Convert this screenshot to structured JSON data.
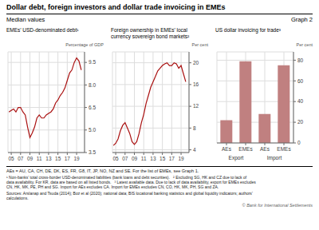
{
  "title": "Dollar debt, foreign investors and dollar trade invoicing in EMEs",
  "subtitle": "Median values",
  "annotations": [
    "Graph 2",
    "AEs = AU, CA, CH, DE, DK, ES, FR, G8, IT, JP, NO, NZ and SE. For the list of EMEs, see Graph 1.",
    "¹ Non-banks’ total cross-border USD-denominated liabilities (bank loans and debt securities).   ² Excluding SG, HK and CZ due to lack of\ndata availability. For KR, data are based on all listed bonds.   ³ Latest available data. Due to lack of data availability, export for EMEs excludes\nCN, HK, MK, PE, PH and SG. Import for AEs excludes CA. Import for EMEs excludes CN, CO, HK, MK, PH, SG and ZA.",
    "Sources: Arslanap and Tsuda (2014); Boz et al (2020); national data; BIS locational banking statistics and global liquidity indicators; authors’\ncalculations.",
    "© Bank for International Settlements"
  ],
  "chart_data": [
    {
      "type": "line",
      "title": "EMEs’ USD-denominated debt¹",
      "y_label": "Percentage of GDP",
      "x": [
        2004.5,
        2005.0,
        2005.5,
        2006.0,
        2006.5,
        2007.0,
        2007.5,
        2008.0,
        2008.5,
        2009.0,
        2009.5,
        2010.0,
        2010.5,
        2011.0,
        2011.5,
        2012.0,
        2012.5,
        2013.0,
        2013.5,
        2014.0,
        2014.5,
        2015.0,
        2015.5,
        2016.0,
        2016.5,
        2017.0,
        2017.5,
        2018.0,
        2018.5,
        2019.0,
        2019.5,
        2020.0
      ],
      "values": [
        6.2,
        6.3,
        6.4,
        6.2,
        6.5,
        6.5,
        6.2,
        6.0,
        5.2,
        4.5,
        4.8,
        5.2,
        5.8,
        6.0,
        5.8,
        5.8,
        6.0,
        6.1,
        6.2,
        6.4,
        6.8,
        7.0,
        7.3,
        7.5,
        7.8,
        8.3,
        8.8,
        9.0,
        9.5,
        9.8,
        9.6,
        9.0
      ],
      "color": "#aa1111",
      "xlim": [
        2004.3,
        2020.7
      ],
      "xticks": [
        {
          "value": 2005,
          "label": "05"
        },
        {
          "value": 2007,
          "label": "07"
        },
        {
          "value": 2009,
          "label": "09"
        },
        {
          "value": 2011,
          "label": "11"
        },
        {
          "value": 2013,
          "label": "13"
        },
        {
          "value": 2015,
          "label": "15"
        },
        {
          "value": 2017,
          "label": "17"
        },
        {
          "value": 2019,
          "label": "19"
        }
      ],
      "ylim": [
        3.5,
        10.2
      ],
      "yticks": [
        3.5,
        {
          "value": 5,
          "label": "5.0"
        },
        6.5,
        {
          "value": 8,
          "label": "8.0"
        },
        9.5
      ],
      "grid": true
    },
    {
      "type": "line",
      "title": "Foreign ownership in EMEs’ local\ncurrency sovereign bond markets²",
      "y_label": "Per cent",
      "x": [
        2004.5,
        2005.0,
        2005.5,
        2006.0,
        2006.5,
        2007.0,
        2007.5,
        2008.0,
        2008.5,
        2009.0,
        2009.5,
        2010.0,
        2010.5,
        2011.0,
        2011.5,
        2012.0,
        2012.5,
        2013.0,
        2013.5,
        2014.0,
        2014.5,
        2015.0,
        2015.5,
        2016.0,
        2016.5,
        2017.0,
        2017.5,
        2018.0,
        2018.5,
        2019.0,
        2019.5,
        2020.0
      ],
      "values": [
        4.8,
        5.2,
        6.0,
        7.5,
        8.5,
        9.0,
        8.0,
        7.0,
        5.5,
        5.0,
        5.5,
        7.0,
        9.0,
        10.5,
        12.5,
        14.0,
        15.5,
        16.5,
        17.5,
        18.5,
        19.0,
        19.5,
        19.8,
        20.0,
        19.5,
        19.5,
        20.0,
        19.8,
        19.0,
        19.5,
        18.0,
        16.5
      ],
      "color": "#aa1111",
      "xlim": [
        2004.3,
        2020.7
      ],
      "xticks": [
        {
          "value": 2005,
          "label": "05"
        },
        {
          "value": 2007,
          "label": "07"
        },
        {
          "value": 2009,
          "label": "09"
        },
        {
          "value": 2011,
          "label": "11"
        },
        {
          "value": 2013,
          "label": "13"
        },
        {
          "value": 2015,
          "label": "15"
        },
        {
          "value": 2017,
          "label": "17"
        },
        {
          "value": 2019,
          "label": "19"
        }
      ],
      "ylim": [
        3.5,
        22
      ],
      "yticks": [
        4,
        8,
        12,
        16,
        20
      ],
      "grid": true
    },
    {
      "type": "bar",
      "title": "US dollar invoicing for trade³",
      "y_label": "Per cent",
      "categories": [
        "AEs",
        "EMEs",
        "AEs",
        "EMEs"
      ],
      "values": [
        22,
        79,
        28,
        75
      ],
      "color": "#c08080",
      "ylim": [
        0,
        88
      ],
      "yticks": [
        0,
        20,
        40,
        60,
        80
      ],
      "annotations": [
        "Export",
        "Import"
      ],
      "grid": true
    }
  ]
}
